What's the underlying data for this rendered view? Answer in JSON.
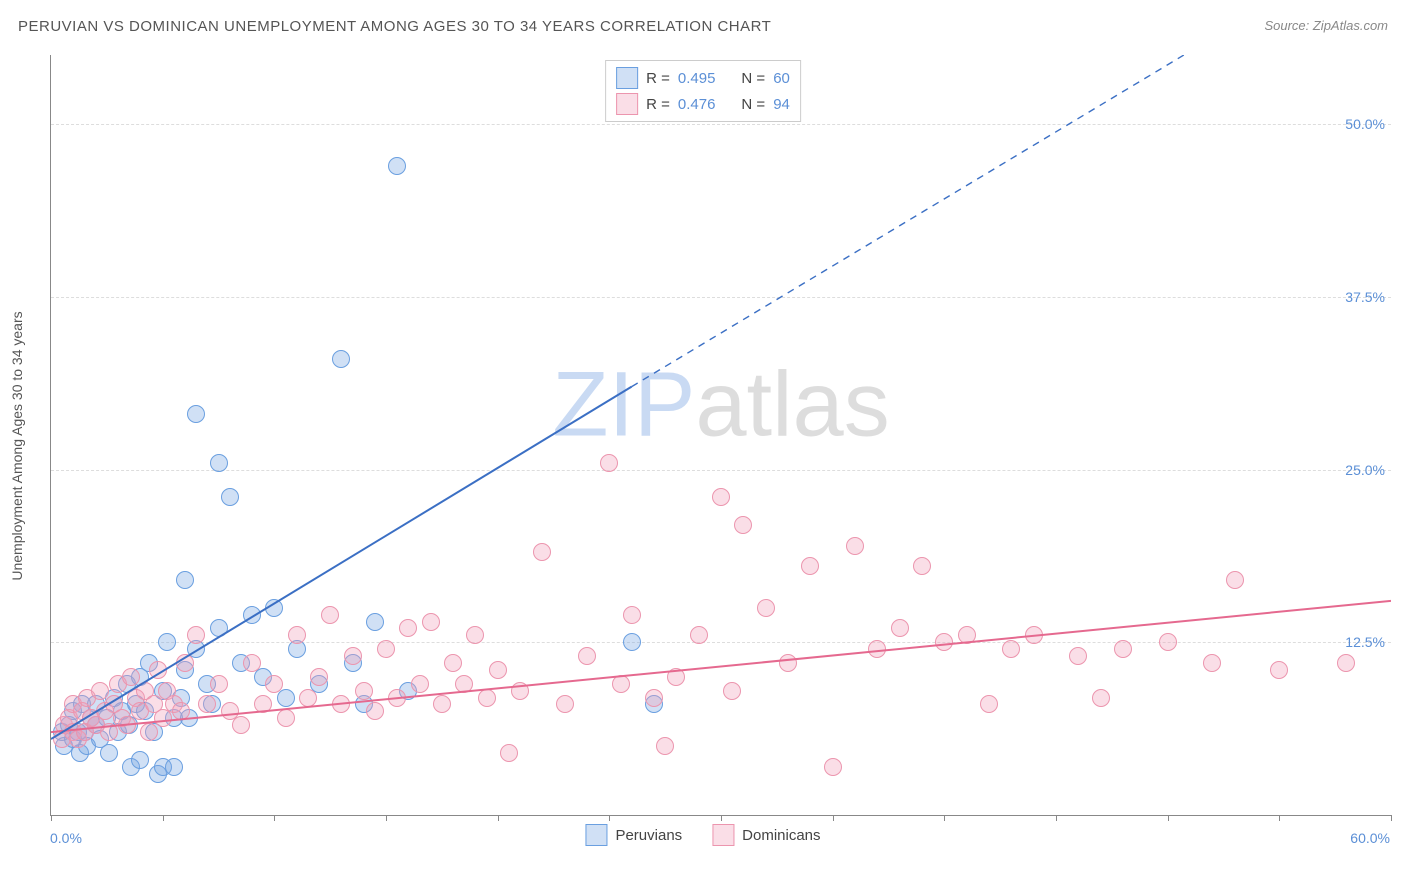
{
  "title": "PERUVIAN VS DOMINICAN UNEMPLOYMENT AMONG AGES 30 TO 34 YEARS CORRELATION CHART",
  "source": "Source: ZipAtlas.com",
  "ylabel": "Unemployment Among Ages 30 to 34 years",
  "watermark_a": "ZIP",
  "watermark_b": "atlas",
  "chart": {
    "type": "scatter",
    "xlim": [
      0,
      60
    ],
    "ylim": [
      0,
      55
    ],
    "x_origin_label": "0.0%",
    "x_max_label": "60.0%",
    "x_ticks": [
      0,
      5,
      10,
      15,
      20,
      25,
      30,
      35,
      40,
      45,
      50,
      55,
      60
    ],
    "y_gridlines": [
      12.5,
      25.0,
      37.5,
      50.0
    ],
    "y_labels": [
      "12.5%",
      "25.0%",
      "37.5%",
      "50.0%"
    ],
    "axis_color": "#888888",
    "grid_color": "#dddddd",
    "tick_label_color": "#5b8fd6",
    "background_color": "#ffffff",
    "marker_radius": 8,
    "marker_stroke_width": 1.2,
    "trend_line_width": 2
  },
  "series": [
    {
      "name": "Peruvians",
      "fill": "rgba(120,165,225,0.35)",
      "stroke": "#6a9fe0",
      "line_color": "#3b6fc4",
      "R": "0.495",
      "N": "60",
      "trend": {
        "x1": 0,
        "y1": 5.5,
        "x2": 26,
        "y2": 31,
        "x3": 60,
        "y3": 64
      },
      "points": [
        [
          0.5,
          6.0
        ],
        [
          0.6,
          5.0
        ],
        [
          0.8,
          6.5
        ],
        [
          1.0,
          5.5
        ],
        [
          1.0,
          7.5
        ],
        [
          1.2,
          6.0
        ],
        [
          1.3,
          4.5
        ],
        [
          1.4,
          8.0
        ],
        [
          1.5,
          6.0
        ],
        [
          1.6,
          5.0
        ],
        [
          1.8,
          7.0
        ],
        [
          2.0,
          6.5
        ],
        [
          2.0,
          8.0
        ],
        [
          2.2,
          5.5
        ],
        [
          2.5,
          7.0
        ],
        [
          2.6,
          4.5
        ],
        [
          2.8,
          8.5
        ],
        [
          3.0,
          6.0
        ],
        [
          3.2,
          7.5
        ],
        [
          3.4,
          9.5
        ],
        [
          3.5,
          6.5
        ],
        [
          3.6,
          3.5
        ],
        [
          3.8,
          8.0
        ],
        [
          4.0,
          10.0
        ],
        [
          4.0,
          4.0
        ],
        [
          4.2,
          7.5
        ],
        [
          4.4,
          11.0
        ],
        [
          4.6,
          6.0
        ],
        [
          4.8,
          3.0
        ],
        [
          5.0,
          9.0
        ],
        [
          5.0,
          3.5
        ],
        [
          5.2,
          12.5
        ],
        [
          5.5,
          7.0
        ],
        [
          5.5,
          3.5
        ],
        [
          5.8,
          8.5
        ],
        [
          6.0,
          10.5
        ],
        [
          6.0,
          17.0
        ],
        [
          6.2,
          7.0
        ],
        [
          6.5,
          12.0
        ],
        [
          6.5,
          29.0
        ],
        [
          7.0,
          9.5
        ],
        [
          7.2,
          8.0
        ],
        [
          7.5,
          13.5
        ],
        [
          7.5,
          25.5
        ],
        [
          8.0,
          23.0
        ],
        [
          8.5,
          11.0
        ],
        [
          9.0,
          14.5
        ],
        [
          9.5,
          10.0
        ],
        [
          10.0,
          15.0
        ],
        [
          10.5,
          8.5
        ],
        [
          11.0,
          12.0
        ],
        [
          12.0,
          9.5
        ],
        [
          13.0,
          33.0
        ],
        [
          13.5,
          11.0
        ],
        [
          14.0,
          8.0
        ],
        [
          14.5,
          14.0
        ],
        [
          15.5,
          47.0
        ],
        [
          16.0,
          9.0
        ],
        [
          26.0,
          12.5
        ],
        [
          27.0,
          8.0
        ]
      ]
    },
    {
      "name": "Dominicans",
      "fill": "rgba(240,160,185,0.35)",
      "stroke": "#ec95ae",
      "line_color": "#e5698f",
      "R": "0.476",
      "N": "94",
      "trend": {
        "x1": 0,
        "y1": 6.0,
        "x2": 60,
        "y2": 15.5
      },
      "points": [
        [
          0.5,
          5.5
        ],
        [
          0.6,
          6.5
        ],
        [
          0.8,
          7.0
        ],
        [
          1.0,
          6.0
        ],
        [
          1.0,
          8.0
        ],
        [
          1.2,
          5.5
        ],
        [
          1.4,
          7.5
        ],
        [
          1.5,
          6.0
        ],
        [
          1.6,
          8.5
        ],
        [
          1.8,
          7.0
        ],
        [
          2.0,
          6.5
        ],
        [
          2.2,
          9.0
        ],
        [
          2.4,
          7.5
        ],
        [
          2.6,
          6.0
        ],
        [
          2.8,
          8.0
        ],
        [
          3.0,
          9.5
        ],
        [
          3.2,
          7.0
        ],
        [
          3.4,
          6.5
        ],
        [
          3.6,
          10.0
        ],
        [
          3.8,
          8.5
        ],
        [
          4.0,
          7.5
        ],
        [
          4.2,
          9.0
        ],
        [
          4.4,
          6.0
        ],
        [
          4.6,
          8.0
        ],
        [
          4.8,
          10.5
        ],
        [
          5.0,
          7.0
        ],
        [
          5.2,
          9.0
        ],
        [
          5.5,
          8.0
        ],
        [
          5.8,
          7.5
        ],
        [
          6.0,
          11.0
        ],
        [
          6.5,
          13.0
        ],
        [
          7.0,
          8.0
        ],
        [
          7.5,
          9.5
        ],
        [
          8.0,
          7.5
        ],
        [
          8.5,
          6.5
        ],
        [
          9.0,
          11.0
        ],
        [
          9.5,
          8.0
        ],
        [
          10.0,
          9.5
        ],
        [
          10.5,
          7.0
        ],
        [
          11.0,
          13.0
        ],
        [
          11.5,
          8.5
        ],
        [
          12.0,
          10.0
        ],
        [
          12.5,
          14.5
        ],
        [
          13.0,
          8.0
        ],
        [
          13.5,
          11.5
        ],
        [
          14.0,
          9.0
        ],
        [
          14.5,
          7.5
        ],
        [
          15.0,
          12.0
        ],
        [
          15.5,
          8.5
        ],
        [
          16.0,
          13.5
        ],
        [
          16.5,
          9.5
        ],
        [
          17.0,
          14.0
        ],
        [
          17.5,
          8.0
        ],
        [
          18.0,
          11.0
        ],
        [
          18.5,
          9.5
        ],
        [
          19.0,
          13.0
        ],
        [
          19.5,
          8.5
        ],
        [
          20.0,
          10.5
        ],
        [
          20.5,
          4.5
        ],
        [
          21.0,
          9.0
        ],
        [
          22.0,
          19.0
        ],
        [
          23.0,
          8.0
        ],
        [
          24.0,
          11.5
        ],
        [
          25.0,
          25.5
        ],
        [
          25.5,
          9.5
        ],
        [
          26.0,
          14.5
        ],
        [
          27.0,
          8.5
        ],
        [
          27.5,
          5.0
        ],
        [
          28.0,
          10.0
        ],
        [
          29.0,
          13.0
        ],
        [
          30.0,
          23.0
        ],
        [
          30.5,
          9.0
        ],
        [
          31.0,
          21.0
        ],
        [
          32.0,
          15.0
        ],
        [
          33.0,
          11.0
        ],
        [
          34.0,
          18.0
        ],
        [
          35.0,
          3.5
        ],
        [
          36.0,
          19.5
        ],
        [
          37.0,
          12.0
        ],
        [
          38.0,
          13.5
        ],
        [
          39.0,
          18.0
        ],
        [
          40.0,
          12.5
        ],
        [
          41.0,
          13.0
        ],
        [
          42.0,
          8.0
        ],
        [
          43.0,
          12.0
        ],
        [
          44.0,
          13.0
        ],
        [
          46.0,
          11.5
        ],
        [
          47.0,
          8.5
        ],
        [
          48.0,
          12.0
        ],
        [
          50.0,
          12.5
        ],
        [
          52.0,
          11.0
        ],
        [
          53.0,
          17.0
        ],
        [
          55.0,
          10.5
        ],
        [
          58.0,
          11.0
        ]
      ]
    }
  ],
  "legend_top": {
    "R_label": "R =",
    "N_label": "N ="
  },
  "legend_bottom": [
    {
      "label": "Peruvians"
    },
    {
      "label": "Dominicans"
    }
  ]
}
